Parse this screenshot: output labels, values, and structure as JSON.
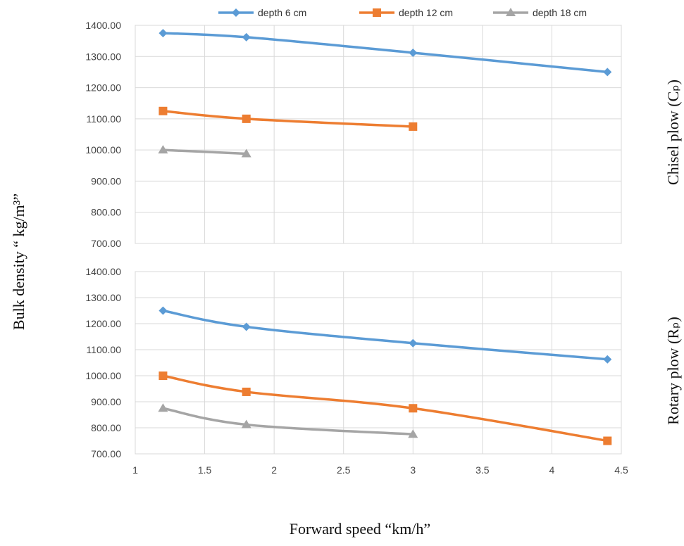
{
  "legend": [
    {
      "name": "depth 6 cm",
      "color": "#5B9BD5",
      "marker": "diamond"
    },
    {
      "name": "depth 12 cm",
      "color": "#ED7D31",
      "marker": "square"
    },
    {
      "name": "depth 18 cm",
      "color": "#A5A5A5",
      "marker": "triangle"
    }
  ],
  "labels": {
    "xlabel": "Forward speed “km/h”",
    "ylabel": "Bulk density “  kg/m³”",
    "top_panel": "Chisel plow (Cₚ)",
    "bottom_panel": "Rotary plow (Rₚ)"
  },
  "chart_data": [
    {
      "type": "line",
      "title": "Chisel plow (Cp)",
      "xlabel": "Forward speed “km/h”",
      "ylabel": "Bulk density “ kg/m3”",
      "xlim": [
        1,
        4.5
      ],
      "ylim": [
        700,
        1400
      ],
      "x_ticks": [
        "1",
        "1.5",
        "2",
        "2.5",
        "3",
        "3.5",
        "4",
        "4.5"
      ],
      "y_ticks": [
        "700.00",
        "800.00",
        "900.00",
        "1000.00",
        "1100.00",
        "1200.00",
        "1300.00",
        "1400.00"
      ],
      "grid": true,
      "legend_position": "top",
      "series": [
        {
          "name": "depth 6 cm",
          "x": [
            1.2,
            1.8,
            3.0,
            4.4
          ],
          "values": [
            1375,
            1362,
            1312,
            1250
          ]
        },
        {
          "name": "depth 12 cm",
          "x": [
            1.2,
            1.8,
            3.0
          ],
          "values": [
            1125,
            1100,
            1075
          ]
        },
        {
          "name": "depth 18 cm",
          "x": [
            1.2,
            1.8
          ],
          "values": [
            1000,
            988
          ]
        }
      ]
    },
    {
      "type": "line",
      "title": "Rotary plow (Rp)",
      "xlabel": "Forward speed “km/h”",
      "ylabel": "Bulk density “ kg/m3”",
      "xlim": [
        1,
        4.5
      ],
      "ylim": [
        700,
        1400
      ],
      "x_ticks": [
        "1",
        "1.5",
        "2",
        "2.5",
        "3",
        "3.5",
        "4",
        "4.5"
      ],
      "y_ticks": [
        "700.00",
        "800.00",
        "900.00",
        "1000.00",
        "1100.00",
        "1200.00",
        "1300.00",
        "1400.00"
      ],
      "grid": true,
      "series": [
        {
          "name": "depth 6 cm",
          "x": [
            1.2,
            1.8,
            3.0,
            4.4
          ],
          "values": [
            1250,
            1188,
            1125,
            1063
          ]
        },
        {
          "name": "depth 12 cm",
          "x": [
            1.2,
            1.8,
            3.0,
            4.4
          ],
          "values": [
            1000,
            938,
            875,
            750
          ]
        },
        {
          "name": "depth 18 cm",
          "x": [
            1.2,
            1.8,
            3.0
          ],
          "values": [
            875,
            812,
            775
          ]
        }
      ]
    }
  ]
}
